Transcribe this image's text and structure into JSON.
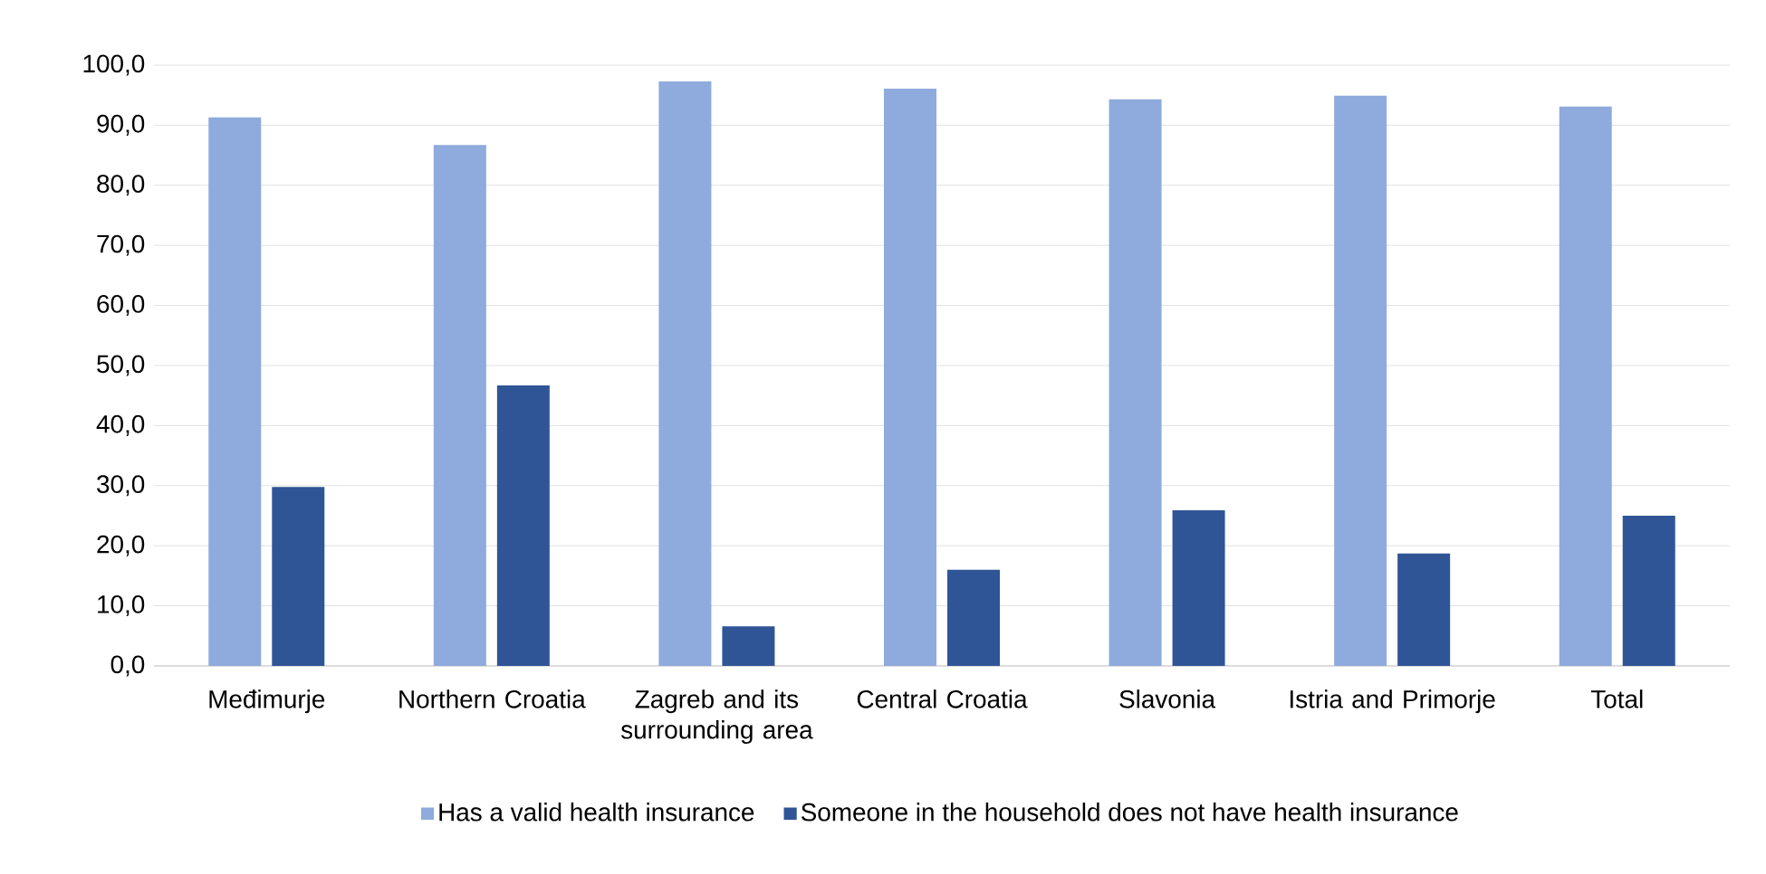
{
  "chart_data": {
    "type": "bar",
    "categories": [
      "Međimurje",
      "Northern Croatia",
      "Zagreb and its surrounding area",
      "Central Croatia",
      "Slavonia",
      "Istria and Primorje",
      "Total"
    ],
    "series": [
      {
        "name": "Has a valid health insurance",
        "color": "#8faadc",
        "values": [
          91.3,
          86.7,
          97.3,
          96.1,
          94.3,
          94.9,
          93.1
        ]
      },
      {
        "name": "Someone in the household does not have health insurance",
        "color": "#2f5597",
        "values": [
          29.8,
          46.7,
          6.6,
          16.0,
          25.9,
          18.7,
          25.0
        ]
      }
    ],
    "ylim": [
      0,
      100
    ],
    "yticks": [
      {
        "value": 0,
        "label": "0,0"
      },
      {
        "value": 10,
        "label": "10,0"
      },
      {
        "value": 20,
        "label": "20,0"
      },
      {
        "value": 30,
        "label": "30,0"
      },
      {
        "value": 40,
        "label": "40,0"
      },
      {
        "value": 50,
        "label": "50,0"
      },
      {
        "value": 60,
        "label": "60,0"
      },
      {
        "value": 70,
        "label": "70,0"
      },
      {
        "value": 80,
        "label": "80,0"
      },
      {
        "value": 90,
        "label": "90,0"
      },
      {
        "value": 100,
        "label": "100,0"
      }
    ],
    "grid": "y",
    "legend": "bottom"
  }
}
